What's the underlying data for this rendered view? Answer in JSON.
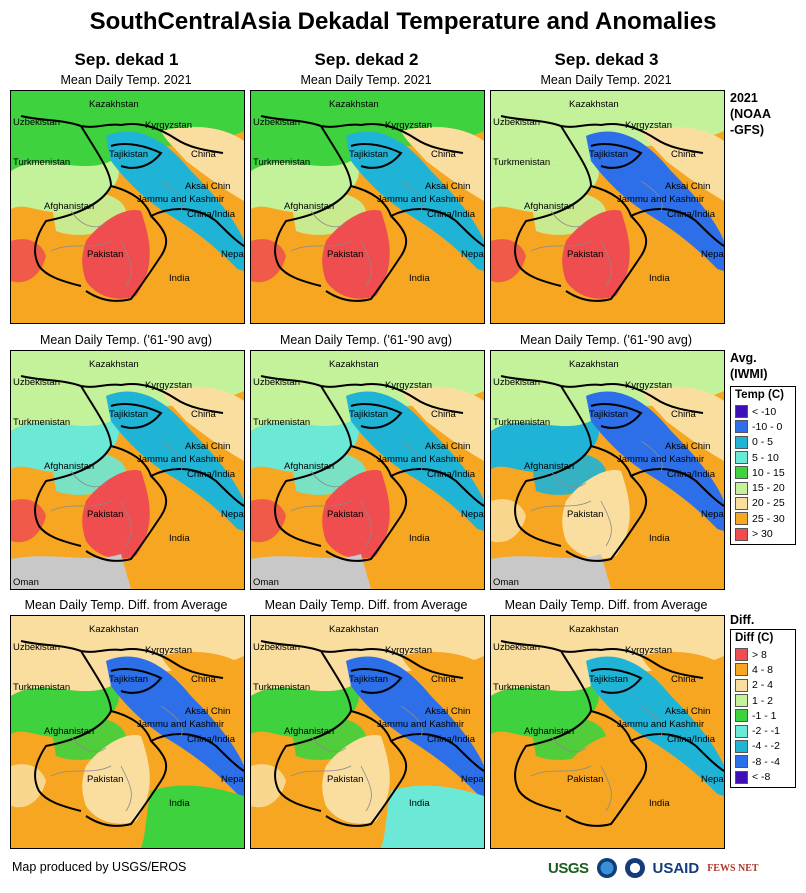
{
  "title": "SouthCentralAsia Dekadal Temperature and Anomalies",
  "columns": [
    "Sep. dekad 1",
    "Sep. dekad 2",
    "Sep. dekad 3"
  ],
  "rows": [
    {
      "subtitle": "Mean Daily Temp. 2021",
      "label_lines": [
        "2021",
        "(NOAA",
        "-GFS)"
      ]
    },
    {
      "subtitle": "Mean Daily Temp. ('61-'90 avg)",
      "label_lines": [
        "Avg.",
        "(IWMI)"
      ]
    },
    {
      "subtitle": "Mean Daily Temp. Diff. from Average",
      "label_lines": [
        "Diff."
      ]
    }
  ],
  "map_labels": {
    "kazakhstan": "Kazakhstan",
    "uzbekistan": "Uzbekistan",
    "kyrgyzstan": "Kyrgyzstan",
    "tajikistan": "Tajikistan",
    "turkmenistan": "Turkmenistan",
    "china": "China",
    "aksai_chin": "Aksai Chin",
    "jammu_kashmir": "Jammu and Kashmir",
    "china_india": "China/India",
    "afghanistan": "Afghanistan",
    "pakistan": "Pakistan",
    "india": "India",
    "nepal": "Nepal",
    "oman": "Oman"
  },
  "temp_legend": {
    "title": "Temp (C)",
    "items": [
      {
        "label": "< -10",
        "color": "#3d0fb8"
      },
      {
        "label": "-10 - 0",
        "color": "#2c6fe8"
      },
      {
        "label": "0 - 5",
        "color": "#1fb4d6"
      },
      {
        "label": "5 - 10",
        "color": "#6be8d6"
      },
      {
        "label": "10 - 15",
        "color": "#3fd23f"
      },
      {
        "label": "15 - 20",
        "color": "#c4f29a"
      },
      {
        "label": "20 - 25",
        "color": "#f9dea0"
      },
      {
        "label": "25 - 30",
        "color": "#f6a621"
      },
      {
        "label": "> 30",
        "color": "#ef4d50"
      }
    ]
  },
  "diff_legend": {
    "title": "Diff (C)",
    "items": [
      {
        "label": "> 8",
        "color": "#ef4d50"
      },
      {
        "label": "4 - 8",
        "color": "#f6a621"
      },
      {
        "label": "2 - 4",
        "color": "#f9dea0"
      },
      {
        "label": "1 - 2",
        "color": "#c4f29a"
      },
      {
        "label": "-1 - 1",
        "color": "#3fd23f"
      },
      {
        "label": "-2 - -1",
        "color": "#6be8d6"
      },
      {
        "label": "-4 - -2",
        "color": "#1fb4d6"
      },
      {
        "label": "-8 - -4",
        "color": "#2c6fe8"
      },
      {
        "label": "< -8",
        "color": "#3d0fb8"
      }
    ]
  },
  "credit": "Map produced by USGS/EROS",
  "logos": {
    "usgs": "USGS",
    "usaid": "USAID",
    "fews": "FEWS NET"
  },
  "colors": {
    "hot": "#ef4d50",
    "warm": "#f6a621",
    "mild": "#f9dea0",
    "cool": "#c4f29a",
    "green": "#3fd23f",
    "aqua": "#6be8d6",
    "cyan": "#1fb4d6",
    "blue": "#2c6fe8",
    "violet": "#3d0fb8",
    "sea": "#c8c8c8"
  }
}
